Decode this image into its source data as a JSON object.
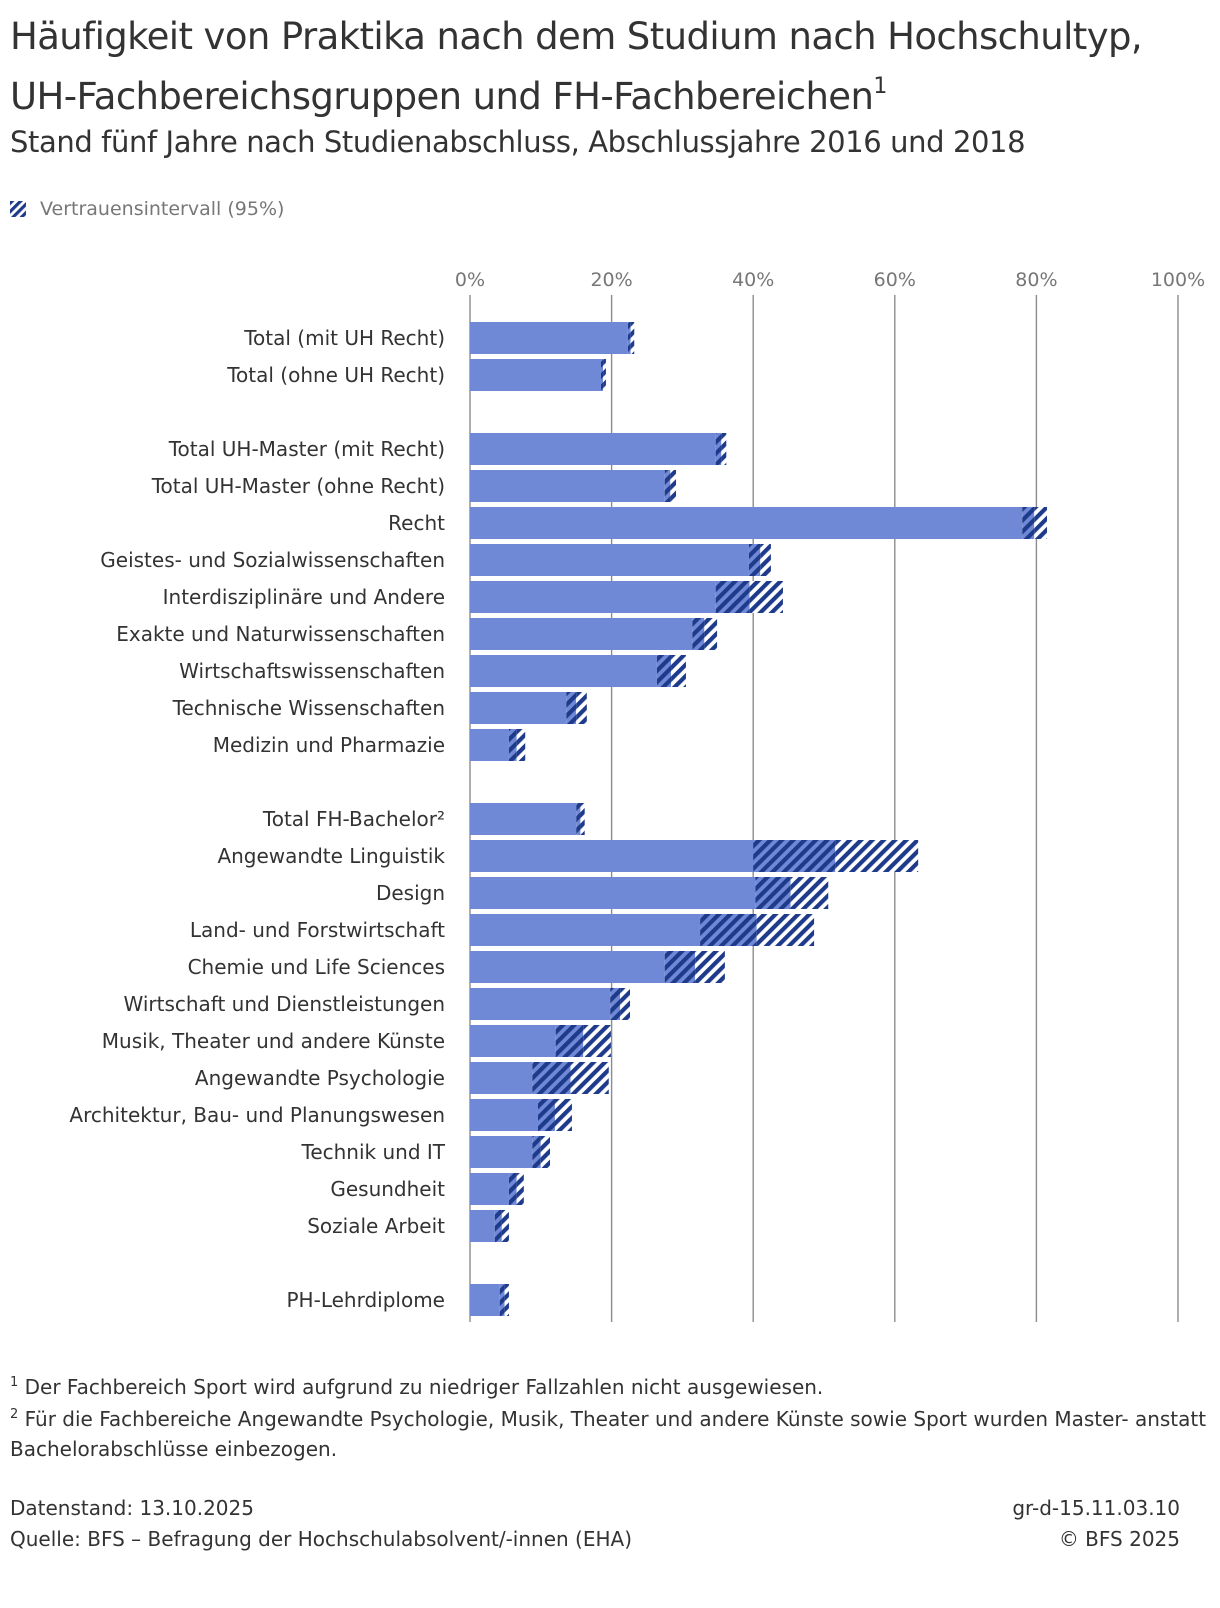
{
  "chart_data": {
    "type": "bar",
    "orientation": "horizontal",
    "title": "Häufigkeit von Praktika nach dem Studium nach Hochschultyp, UH-Fachbereichsgruppen und FH-Fachbereichen",
    "title_sup": "1",
    "subtitle": "Stand fünf Jahre nach Studienabschluss, Abschlussjahre 2016 und 2018",
    "legend": [
      {
        "name": "Vertrauensintervall (95%)",
        "marker": "hatch"
      }
    ],
    "legend_position": "top-left",
    "xlabel": "",
    "ylabel": "",
    "xlim": [
      0,
      100
    ],
    "x_ticks": [
      0,
      20,
      40,
      60,
      80,
      100
    ],
    "x_tick_labels": [
      "0%",
      "20%",
      "40%",
      "60%",
      "80%",
      "100%"
    ],
    "grid": true,
    "bar_color": "#7089d7",
    "ci_color": "#1e3a8a",
    "groups": [
      {
        "categories": [
          {
            "label": "Total (mit UH Recht)",
            "value": 22.7,
            "ci": [
              22.3,
              23.2
            ]
          },
          {
            "label": "Total (ohne UH Recht)",
            "value": 18.8,
            "ci": [
              18.5,
              19.2
            ]
          }
        ]
      },
      {
        "categories": [
          {
            "label": "Total UH-Master (mit Recht)",
            "value": 35.5,
            "ci": [
              34.7,
              36.2
            ]
          },
          {
            "label": "Total UH-Master (ohne Recht)",
            "value": 28.3,
            "ci": [
              27.5,
              29.1
            ]
          },
          {
            "label": "Recht",
            "value": 79.7,
            "ci": [
              78.0,
              81.5
            ]
          },
          {
            "label": "Geistes- und Sozialwissenschaften",
            "value": 41.0,
            "ci": [
              39.4,
              42.5
            ]
          },
          {
            "label": "Interdisziplinäre und Andere",
            "value": 39.5,
            "ci": [
              34.7,
              44.2
            ]
          },
          {
            "label": "Exakte und Naturwissenschaften",
            "value": 33.1,
            "ci": [
              31.4,
              34.9
            ]
          },
          {
            "label": "Wirtschaftswissenschaften",
            "value": 28.4,
            "ci": [
              26.4,
              30.5
            ]
          },
          {
            "label": "Technische Wissenschaften",
            "value": 15.0,
            "ci": [
              13.6,
              16.5
            ]
          },
          {
            "label": "Medizin und Pharmazie",
            "value": 6.6,
            "ci": [
              5.5,
              7.8
            ]
          }
        ]
      },
      {
        "categories": [
          {
            "label": "Total FH-Bachelor²",
            "value": 15.6,
            "ci": [
              15.0,
              16.2
            ]
          },
          {
            "label": "Angewandte Linguistik",
            "value": 51.6,
            "ci": [
              40.0,
              63.3
            ]
          },
          {
            "label": "Design",
            "value": 45.3,
            "ci": [
              40.3,
              50.6
            ]
          },
          {
            "label": "Land- und Forstwirtschaft",
            "value": 40.5,
            "ci": [
              32.5,
              48.6
            ]
          },
          {
            "label": "Chemie und Life Sciences",
            "value": 31.8,
            "ci": [
              27.5,
              36.0
            ]
          },
          {
            "label": "Wirtschaft und Dienstleistungen",
            "value": 21.2,
            "ci": [
              19.8,
              22.6
            ]
          },
          {
            "label": "Musik, Theater und andere Künste",
            "value": 16.0,
            "ci": [
              12.1,
              19.9
            ]
          },
          {
            "label": "Angewandte Psychologie",
            "value": 14.2,
            "ci": [
              8.8,
              19.6
            ]
          },
          {
            "label": "Architektur, Bau- und Planungswesen",
            "value": 12.0,
            "ci": [
              9.6,
              14.4
            ]
          },
          {
            "label": "Technik und IT",
            "value": 10.0,
            "ci": [
              8.8,
              11.3
            ]
          },
          {
            "label": "Gesundheit",
            "value": 6.6,
            "ci": [
              5.5,
              7.6
            ]
          },
          {
            "label": "Soziale Arbeit",
            "value": 4.5,
            "ci": [
              3.5,
              5.5
            ]
          }
        ]
      },
      {
        "categories": [
          {
            "label": "PH-Lehrdiplome",
            "value": 4.9,
            "ci": [
              4.2,
              5.5
            ]
          }
        ]
      }
    ]
  },
  "footnotes": [
    {
      "marker": "1",
      "text": "Der Fachbereich Sport wird aufgrund zu niedriger Fallzahlen nicht ausgewiesen."
    },
    {
      "marker": "2",
      "text": "Für die Fachbereiche Angewandte Psychologie, Musik, Theater und andere Künste sowie Sport wurden Master- anstatt Bachelorabschlüsse einbezogen."
    }
  ],
  "meta": {
    "datenstand": "Datenstand: 13.10.2025",
    "quelle": "Quelle: BFS – Befragung der Hochschulabsolvent/-innen (EHA)",
    "graph_id": "gr-d-15.11.03.10",
    "copyright": "© BFS 2025"
  }
}
